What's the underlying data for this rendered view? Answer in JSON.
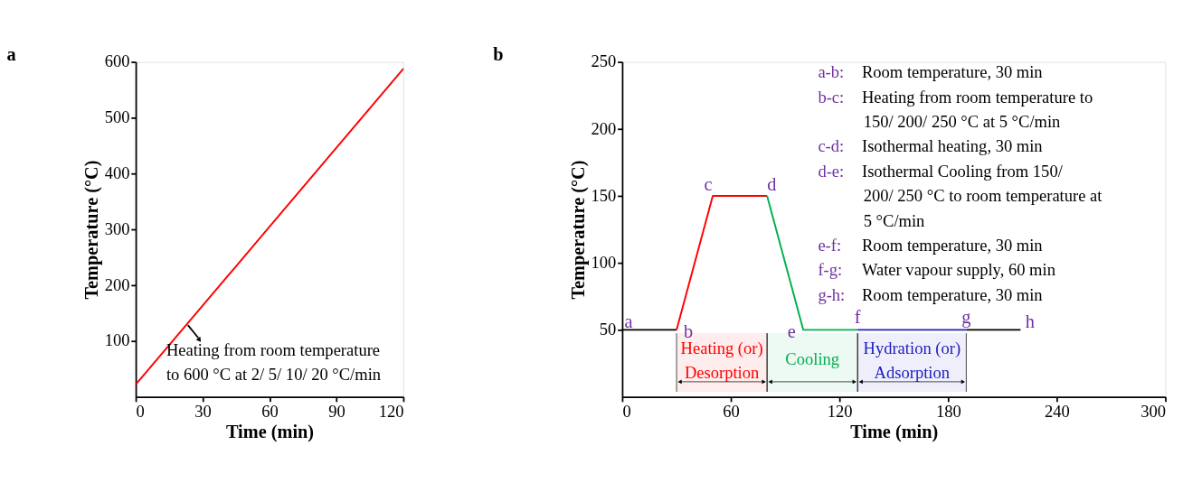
{
  "chart_data": [
    {
      "type": "line",
      "title": "a",
      "xlabel": "Time (min)",
      "ylabel": "Temperature (°C)",
      "series": [
        {
          "color": "#ff0000",
          "x": [
            0,
            120
          ],
          "values": [
            22,
            588
          ]
        }
      ],
      "xlim": [
        0,
        120
      ],
      "xticks": [
        0,
        30,
        60,
        90,
        120
      ],
      "ylim": [
        0,
        600
      ],
      "yticks": [
        100,
        200,
        300,
        400,
        500,
        600
      ],
      "annotations": [
        {
          "text": "Heating from room temperature\nto 600 °C at 2/ 5/ 10/ 20 °C/min",
          "x": 23,
          "y": 130
        }
      ]
    },
    {
      "type": "line",
      "title": "b",
      "xlabel": "Time (min)",
      "ylabel": "Temperature (°C)",
      "series": [
        {
          "color": "#000000",
          "x": [
            0,
            30
          ],
          "values": [
            50,
            50
          ]
        },
        {
          "color": "#ff0000",
          "x": [
            30,
            50,
            80
          ],
          "values": [
            50,
            150,
            150
          ]
        },
        {
          "color": "#00b050",
          "x": [
            80,
            100,
            130
          ],
          "values": [
            150,
            50,
            50
          ]
        },
        {
          "color": "#2020c0",
          "x": [
            130,
            190
          ],
          "values": [
            50,
            50
          ]
        },
        {
          "color": "#000000",
          "x": [
            190,
            220
          ],
          "values": [
            50,
            50
          ]
        }
      ],
      "xlim": [
        0,
        300
      ],
      "xticks": [
        0,
        60,
        120,
        180,
        240,
        300
      ],
      "ylim": [
        0,
        250
      ],
      "yticks": [
        50,
        100,
        150,
        200,
        250
      ],
      "bands": [
        {
          "axis": "x",
          "from": 30,
          "to": 80,
          "label": "Heating (or)\nDesorption",
          "color": "#ff0000"
        },
        {
          "axis": "x",
          "from": 80,
          "to": 130,
          "label": "Cooling",
          "color": "#00b050"
        },
        {
          "axis": "x",
          "from": 130,
          "to": 190,
          "label": "Hydration (or)\nAdsorption",
          "color": "#2020c0"
        }
      ],
      "annotations": [
        {
          "text": "a",
          "x": 0,
          "y": 50
        },
        {
          "text": "b",
          "x": 30,
          "y": 50
        },
        {
          "text": "c",
          "x": 50,
          "y": 150
        },
        {
          "text": "d",
          "x": 80,
          "y": 150
        },
        {
          "text": "e",
          "x": 100,
          "y": 50
        },
        {
          "text": "f",
          "x": 130,
          "y": 50
        },
        {
          "text": "g",
          "x": 190,
          "y": 50
        },
        {
          "text": "h",
          "x": 220,
          "y": 50
        },
        "a-b: Room temperature, 30 min",
        "b-c: Heating from room temperature to\n150/ 200/ 250 °C at 5 °C/min",
        "c-d: Isothermal heating, 30 min",
        "d-e: Isothermal Cooling from 150/\n200/ 250 °C to room temperature at\n5 °C/min",
        "e-f: Room temperature, 30 min",
        "f-g: Water vapour supply, 60 min",
        "g-h: Room temperature, 30 min"
      ]
    }
  ]
}
